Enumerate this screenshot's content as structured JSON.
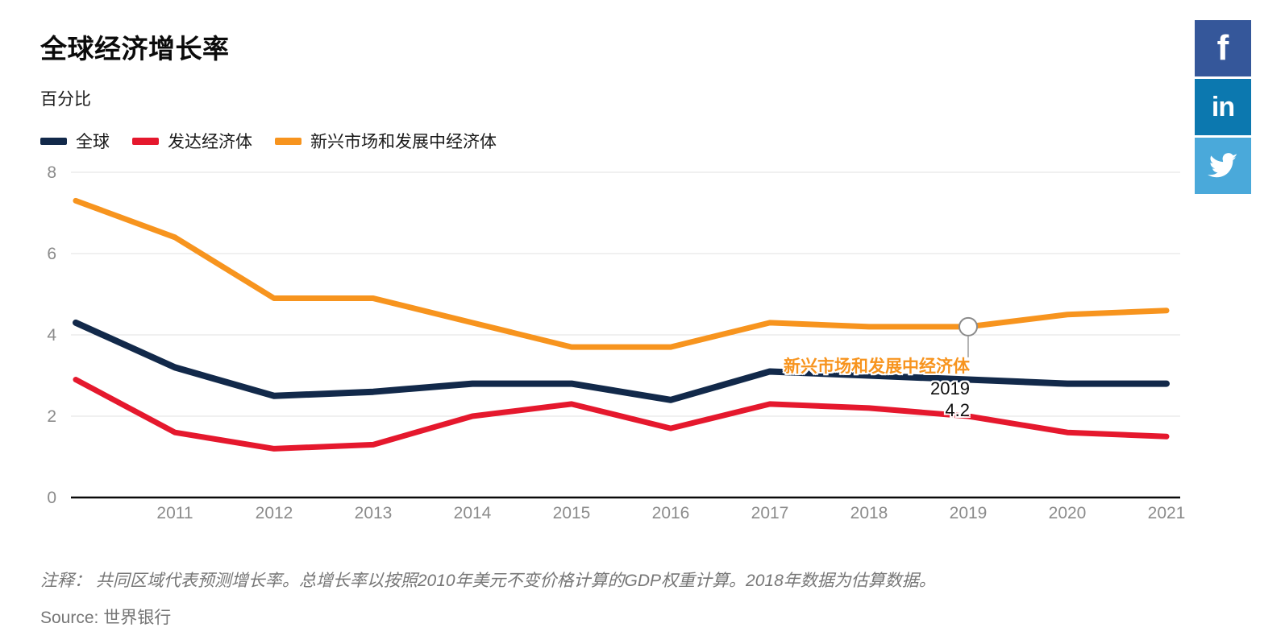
{
  "page": {
    "title": "全球经济增长率",
    "subtitle": "百分比"
  },
  "chart_data": {
    "type": "line",
    "title": "全球经济增长率",
    "ylabel": "百分比",
    "x": [
      2010,
      2011,
      2012,
      2013,
      2014,
      2015,
      2016,
      2017,
      2018,
      2019,
      2020,
      2021
    ],
    "xtick_labels": [
      "2011",
      "2012",
      "2013",
      "2014",
      "2015",
      "2016",
      "2017",
      "2018",
      "2019",
      "2020",
      "2021"
    ],
    "series": [
      {
        "name": "全球",
        "color": "#12294A",
        "values": [
          4.3,
          3.2,
          2.5,
          2.6,
          2.8,
          2.8,
          2.4,
          3.1,
          3.0,
          2.9,
          2.8,
          2.8
        ]
      },
      {
        "name": "发达经济体",
        "color": "#E5182D",
        "values": [
          2.9,
          1.6,
          1.2,
          1.3,
          2.0,
          2.3,
          1.7,
          2.3,
          2.2,
          2.0,
          1.6,
          1.5
        ]
      },
      {
        "name": "新兴市场和发展中经济体",
        "color": "#F7941E",
        "values": [
          7.3,
          6.4,
          4.9,
          4.9,
          4.3,
          3.7,
          3.7,
          4.3,
          4.2,
          4.2,
          4.5,
          4.6
        ]
      }
    ],
    "ylim": [
      0,
      8
    ],
    "yticks": [
      0,
      2,
      4,
      6,
      8
    ],
    "grid": true,
    "legend_position": "top-left",
    "annotation": {
      "series_index": 2,
      "x": 2019,
      "y": 4.2,
      "marker": "open-circle"
    }
  },
  "tooltip": {
    "series_label": "新兴市场和发展中经济体",
    "series_color": "#F7941E",
    "year_label": "2019",
    "value_label": "4.2"
  },
  "footer": {
    "note": "注释： 共同区域代表预测增长率。总增长率以按照2010年美元不变价格计算的GDP权重计算。2018年数据为估算数据。",
    "source_prefix": "Source: ",
    "source": "世界银行"
  },
  "share": {
    "buttons": [
      {
        "name": "Facebook",
        "glyph": "f",
        "color": "#35579A"
      },
      {
        "name": "LinkedIn",
        "glyph": "in",
        "color": "#0C78AF"
      },
      {
        "name": "Twitter",
        "glyph": "",
        "color": "#4AA9DA"
      }
    ]
  },
  "axis_colors": {
    "tick_label": "#8B8B8B",
    "gridline": "#E2E2E2",
    "axis_line": "#0A0A0A"
  }
}
